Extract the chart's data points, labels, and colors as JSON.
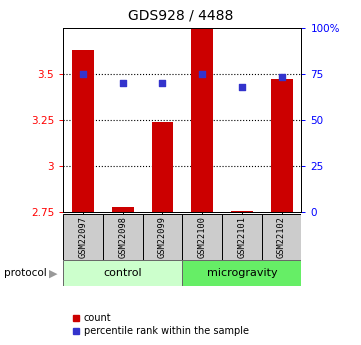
{
  "title": "GDS928 / 4488",
  "samples": [
    "GSM22097",
    "GSM22098",
    "GSM22099",
    "GSM22100",
    "GSM22101",
    "GSM22102"
  ],
  "bar_values": [
    3.63,
    2.78,
    3.24,
    3.75,
    2.755,
    3.47
  ],
  "bar_bottom": 2.75,
  "percentile_values": [
    75,
    70,
    70,
    75,
    68,
    73
  ],
  "ylim_left": [
    2.75,
    3.75
  ],
  "ylim_right": [
    0,
    100
  ],
  "yticks_left": [
    2.75,
    3.0,
    3.25,
    3.5
  ],
  "ytick_labels_left": [
    "2.75",
    "3",
    "3.25",
    "3.5"
  ],
  "yticks_right": [
    0,
    25,
    50,
    75,
    100
  ],
  "ytick_labels_right": [
    "0",
    "25",
    "50",
    "75",
    "100%"
  ],
  "gridlines_at": [
    3.0,
    3.25,
    3.5
  ],
  "bar_color": "#cc0000",
  "percentile_color": "#3333cc",
  "control_label": "control",
  "microgravity_label": "microgravity",
  "protocol_label": "protocol",
  "control_color": "#ccffcc",
  "microgravity_color": "#66ee66",
  "sample_box_color": "#cccccc",
  "legend_count_label": "count",
  "legend_pct_label": "percentile rank within the sample",
  "bar_width": 0.55
}
